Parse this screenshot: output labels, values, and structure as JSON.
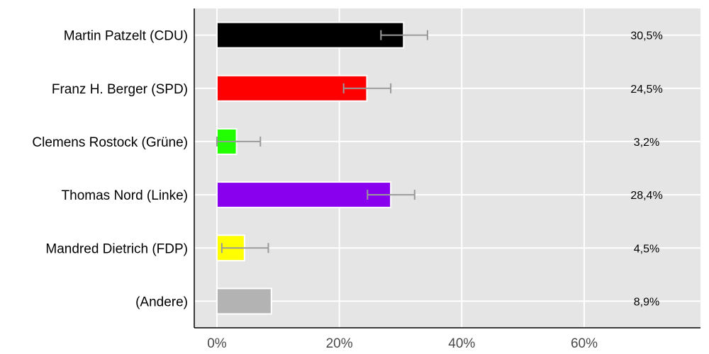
{
  "chart_data": {
    "type": "bar",
    "orientation": "horizontal",
    "categories": [
      "Martin Patzelt (CDU)",
      "Franz H. Berger (SPD)",
      "Clemens Rostock (Grüne)",
      "Thomas Nord (Linke)",
      "Mandred Dietrich (FDP)",
      "(Andere)"
    ],
    "values": [
      30.5,
      24.5,
      3.2,
      28.4,
      4.5,
      8.9
    ],
    "value_labels": [
      "30,5%",
      "24,5%",
      "3,2%",
      "28,4%",
      "4,5%",
      "8,9%"
    ],
    "errors": [
      [
        26.8,
        34.4
      ],
      [
        20.7,
        28.4
      ],
      [
        0.0,
        7.1
      ],
      [
        24.6,
        32.3
      ],
      [
        0.8,
        8.4
      ],
      null
    ],
    "colors": [
      "#000000",
      "#ff0000",
      "#22ff00",
      "#8800ee",
      "#ffff00",
      "#b3b3b3"
    ],
    "xticks": [
      0,
      20,
      40,
      60
    ],
    "xtick_labels": [
      "0%",
      "20%",
      "40%",
      "60%"
    ],
    "xlim": [
      -3.7,
      79
    ],
    "grid": true,
    "title": "",
    "xlabel": "",
    "ylabel": ""
  }
}
